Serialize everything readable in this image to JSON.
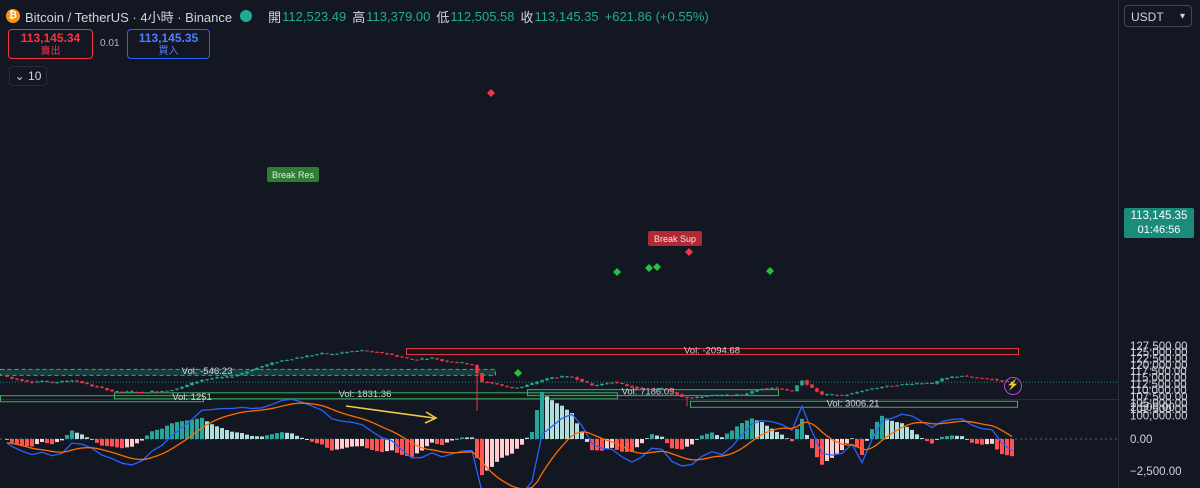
{
  "header": {
    "title": "Bitcoin / TetherUS · 4小時 · Binance",
    "open_label": "開",
    "open": "112,523.49",
    "high_label": "高",
    "high": "113,379.00",
    "low_label": "低",
    "low": "112,505.58",
    "close_label": "收",
    "close": "113,145.35",
    "change": "+621.86 (+0.55%)"
  },
  "trade": {
    "sell_price": "113,145.34",
    "sell_label": "賣出",
    "spread": "0.01",
    "buy_price": "113,145.35",
    "buy_label": "買入"
  },
  "collapse": {
    "value": "10"
  },
  "currency": "USDT",
  "current_price": {
    "price": "113,145.35",
    "countdown": "01:46:56"
  },
  "colors": {
    "up": "#22ab94",
    "down": "#f23645",
    "bg": "#131722"
  },
  "chart_data": [
    {
      "type": "candlestick",
      "interval": "4h",
      "symbol": "BTCUSDT",
      "y_ticks": [
        "127,500.00",
        "125,000.00",
        "122,500.00",
        "120,000.00",
        "117,500.00",
        "115,000.00",
        "112,500.00",
        "110,000.00",
        "107,500.00",
        "105,000.00",
        "102,500.00",
        "100,000.00"
      ],
      "ylim": [
        99000,
        128500
      ],
      "close_path": [
        [
          0,
          115900
        ],
        [
          2,
          114600
        ],
        [
          4,
          113800
        ],
        [
          6,
          113200
        ],
        [
          8,
          113600
        ],
        [
          10,
          113000
        ],
        [
          12,
          113400
        ],
        [
          14,
          113900
        ],
        [
          16,
          112900
        ],
        [
          18,
          111600
        ],
        [
          20,
          110800
        ],
        [
          22,
          109600
        ],
        [
          24,
          109200
        ],
        [
          26,
          109400
        ],
        [
          28,
          109100
        ],
        [
          30,
          109500
        ],
        [
          32,
          109700
        ],
        [
          34,
          110200
        ],
        [
          36,
          111200
        ],
        [
          38,
          112800
        ],
        [
          40,
          114100
        ],
        [
          42,
          114600
        ],
        [
          44,
          115000
        ],
        [
          46,
          115500
        ],
        [
          48,
          116700
        ],
        [
          50,
          118100
        ],
        [
          52,
          119500
        ],
        [
          54,
          120600
        ],
        [
          56,
          121700
        ],
        [
          58,
          122400
        ],
        [
          60,
          123100
        ],
        [
          62,
          123800
        ],
        [
          64,
          124500
        ],
        [
          66,
          124100
        ],
        [
          68,
          124800
        ],
        [
          70,
          125300
        ],
        [
          72,
          125600
        ],
        [
          74,
          125100
        ],
        [
          76,
          124700
        ],
        [
          78,
          123800
        ],
        [
          80,
          122900
        ],
        [
          82,
          122000
        ],
        [
          84,
          122400
        ],
        [
          86,
          122700
        ],
        [
          88,
          121600
        ],
        [
          90,
          121200
        ],
        [
          92,
          120800
        ],
        [
          94,
          120000
        ],
        [
          95,
          116600
        ],
        [
          96,
          113200
        ],
        [
          98,
          112800
        ],
        [
          100,
          111700
        ],
        [
          102,
          110900
        ],
        [
          104,
          111300
        ],
        [
          106,
          112600
        ],
        [
          108,
          114000
        ],
        [
          110,
          115000
        ],
        [
          112,
          115300
        ],
        [
          114,
          115200
        ],
        [
          116,
          113600
        ],
        [
          118,
          111800
        ],
        [
          120,
          112400
        ],
        [
          122,
          113200
        ],
        [
          124,
          112200
        ],
        [
          126,
          111200
        ],
        [
          128,
          110500
        ],
        [
          130,
          110200
        ],
        [
          132,
          110600
        ],
        [
          134,
          109300
        ],
        [
          136,
          107500
        ],
        [
          138,
          106800
        ],
        [
          140,
          107500
        ],
        [
          142,
          108000
        ],
        [
          144,
          107900
        ],
        [
          146,
          108000
        ],
        [
          148,
          108200
        ],
        [
          150,
          109400
        ],
        [
          152,
          110700
        ],
        [
          154,
          111000
        ],
        [
          156,
          110400
        ],
        [
          158,
          109500
        ],
        [
          160,
          113900
        ],
        [
          162,
          110700
        ],
        [
          164,
          108200
        ],
        [
          166,
          108200
        ],
        [
          168,
          107900
        ],
        [
          170,
          108600
        ],
        [
          172,
          109800
        ],
        [
          174,
          110600
        ],
        [
          176,
          111300
        ],
        [
          178,
          111800
        ],
        [
          180,
          112200
        ],
        [
          182,
          112600
        ],
        [
          184,
          112800
        ],
        [
          186,
          112600
        ],
        [
          188,
          114300
        ],
        [
          190,
          115200
        ],
        [
          192,
          115700
        ],
        [
          194,
          115000
        ],
        [
          196,
          114600
        ],
        [
          198,
          114200
        ],
        [
          200,
          113600
        ],
        [
          202,
          113145
        ]
      ],
      "volume_zones": [
        {
          "label": "Vol: -2094.68",
          "price_top": 126400,
          "price_bottom": 125300,
          "color": "#f23645"
        },
        {
          "label": "Vol: -546.23",
          "price_top": 118200,
          "price_bottom": 117200,
          "color": "#22ab94"
        },
        {
          "label": "Vol: 1831.36",
          "price_top": 108950,
          "price_bottom": 108500,
          "color": "#22ab94"
        },
        {
          "label": "Vol: 1251",
          "price_top": 107800,
          "price_bottom": 107300,
          "color": "#22ab94"
        },
        {
          "label": "Vol: 7186.09",
          "price_top": 110200,
          "price_bottom": 109100,
          "color": "#22ab94"
        },
        {
          "label": "Vol: 3006.21",
          "price_top": 105600,
          "price_bottom": 104400,
          "color": "#22ab94"
        }
      ],
      "annotations": [
        {
          "text": "Break Res",
          "kind": "break-resistance"
        },
        {
          "text": "Break Sup",
          "kind": "break-support"
        }
      ]
    },
    {
      "type": "macd",
      "y_ticks": [
        "2,500.00",
        "0.00",
        "−2,500.00"
      ],
      "ylim": [
        -3200,
        3200
      ]
    }
  ]
}
